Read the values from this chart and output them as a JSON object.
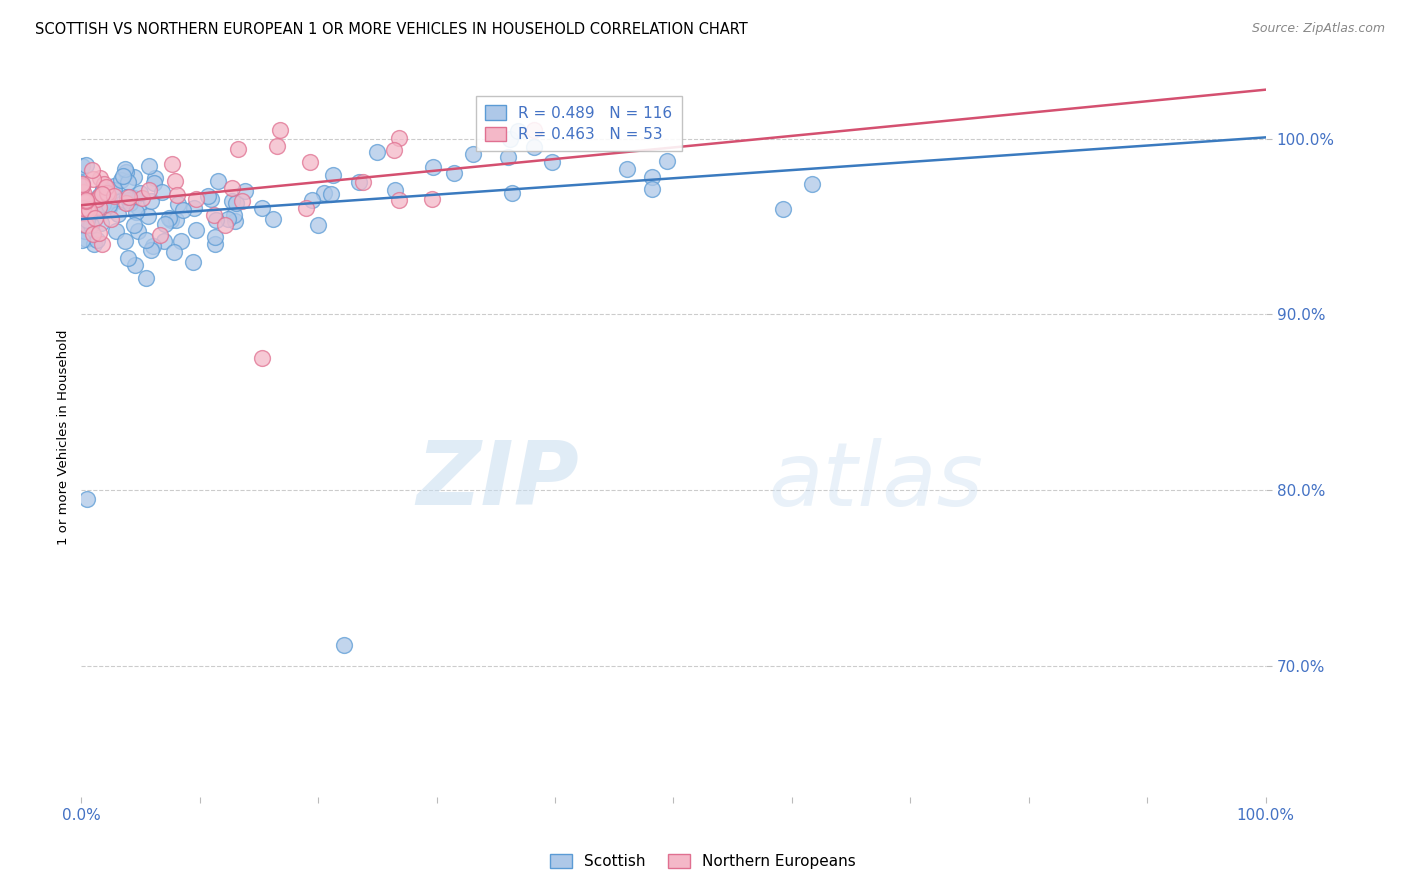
{
  "title": "SCOTTISH VS NORTHERN EUROPEAN 1 OR MORE VEHICLES IN HOUSEHOLD CORRELATION CHART",
  "source": "Source: ZipAtlas.com",
  "ylabel": "1 or more Vehicles in Household",
  "ytick_labels": [
    "100.0%",
    "90.0%",
    "80.0%",
    "70.0%"
  ],
  "ytick_values": [
    1.0,
    0.9,
    0.8,
    0.7
  ],
  "xlim": [
    0.0,
    1.0
  ],
  "ylim": [
    0.625,
    1.035
  ],
  "legend_blue_label": "Scottish",
  "legend_pink_label": "Northern Europeans",
  "r_blue": 0.489,
  "n_blue": 116,
  "r_pink": 0.463,
  "n_pink": 53,
  "blue_fill_color": "#aec8e8",
  "blue_edge_color": "#5b9bd5",
  "pink_fill_color": "#f4b8c8",
  "pink_edge_color": "#e07090",
  "blue_line_color": "#3a7abf",
  "pink_line_color": "#d45070",
  "watermark_zip": "ZIP",
  "watermark_atlas": "atlas",
  "title_fontsize": 10.5,
  "tick_label_color": "#4472c4",
  "axis_label_color": "#4472c4",
  "source_color": "#888888"
}
